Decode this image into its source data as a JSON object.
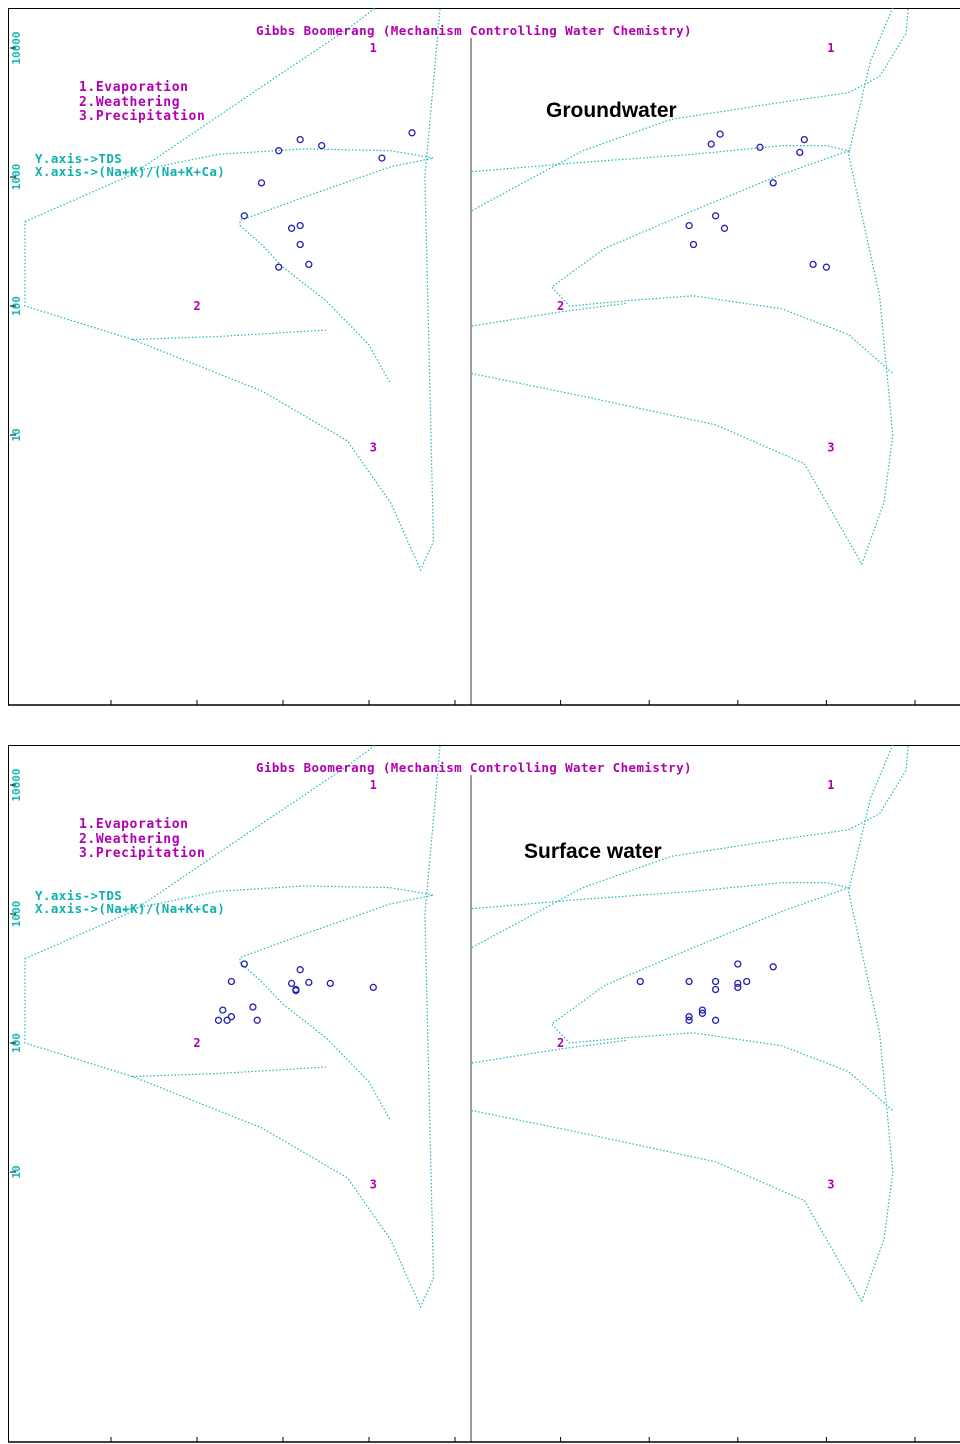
{
  "chart_data": [
    {
      "type": "scatter",
      "title": "Gibbs Boomerang (Mechanism Controlling Water Chemistry)",
      "legend_items": [
        "1.Evaporation",
        "2.Weathering",
        "3.Precipitation"
      ],
      "axis_notes": [
        "Y.axis->TDS",
        "X.axis->(Na+K)/(Na+K+Ca)"
      ],
      "heading": "Groundwater",
      "region_labels": [
        "1",
        "2",
        "3"
      ],
      "y_scale": "log",
      "ylim": [
        1,
        100000
      ],
      "xlim": [
        0,
        1
      ],
      "y_ticks": [
        "10",
        "100",
        "1000",
        "10000",
        "100000"
      ],
      "x_ticks": [
        "0.2",
        "0.4",
        "0.6",
        "0.8",
        "1"
      ],
      "left_series": {
        "name": "",
        "x": [
          0.59,
          0.64,
          0.69,
          0.83,
          0.9,
          0.55,
          0.51,
          0.64,
          0.62,
          0.64,
          0.59,
          0.66
        ],
        "y": [
          1600,
          1950,
          1750,
          1400,
          2200,
          900,
          500,
          420,
          400,
          300,
          200,
          210
        ]
      },
      "right_series": {
        "name": "",
        "x": [
          0.54,
          0.56,
          0.65,
          0.74,
          0.75,
          0.68,
          0.55,
          0.49,
          0.57,
          0.5,
          0.77,
          0.8
        ],
        "y": [
          1800,
          2150,
          1700,
          1550,
          1950,
          900,
          500,
          420,
          400,
          300,
          210,
          200
        ]
      }
    },
    {
      "type": "scatter",
      "title": "Gibbs Boomerang (Mechanism Controlling Water Chemistry)",
      "legend_items": [
        "1.Evaporation",
        "2.Weathering",
        "3.Precipitation"
      ],
      "axis_notes": [
        "Y.axis->TDS",
        "X.axis->(Na+K)/(Na+K+Ca)"
      ],
      "heading": "Surface water",
      "region_labels": [
        "1",
        "2",
        "3"
      ],
      "y_scale": "log",
      "ylim": [
        1,
        100000
      ],
      "xlim": [
        0,
        1
      ],
      "y_ticks": [
        "10",
        "100",
        "1000",
        "10000",
        "100000"
      ],
      "x_ticks": [
        "0.2",
        "0.4",
        "0.6",
        "0.8",
        "1"
      ],
      "left_series": {
        "name": "",
        "x": [
          0.51,
          0.48,
          0.64,
          0.62,
          0.63,
          0.66,
          0.71,
          0.81,
          0.46,
          0.45,
          0.47,
          0.48,
          0.53,
          0.54,
          0.63
        ],
        "y": [
          410,
          300,
          370,
          290,
          260,
          295,
          290,
          270,
          180,
          150,
          150,
          160,
          190,
          150,
          255
        ]
      },
      "right_series": {
        "name": "",
        "x": [
          0.38,
          0.49,
          0.55,
          0.55,
          0.6,
          0.6,
          0.62,
          0.6,
          0.68,
          0.49,
          0.49,
          0.52,
          0.52,
          0.55
        ],
        "y": [
          300,
          300,
          300,
          260,
          410,
          290,
          300,
          270,
          390,
          160,
          150,
          180,
          170,
          150
        ]
      }
    }
  ]
}
